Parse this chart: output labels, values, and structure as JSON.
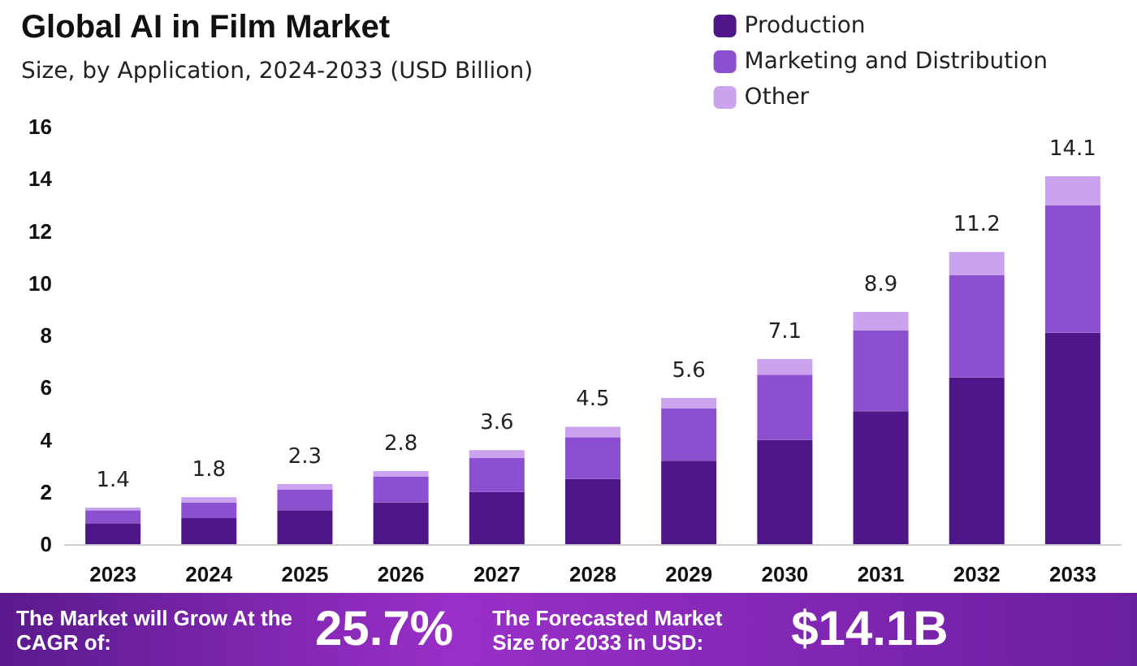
{
  "chart_data": {
    "type": "bar",
    "title": "Global AI in Film Market",
    "subtitle": "Size, by Application, 2024-2033 (USD Billion)",
    "categories": [
      "2023",
      "2024",
      "2025",
      "2026",
      "2027",
      "2028",
      "2029",
      "2030",
      "2031",
      "2032",
      "2033"
    ],
    "series": [
      {
        "name": "Production",
        "color": "#4e1688",
        "values": [
          0.8,
          1.0,
          1.3,
          1.6,
          2.0,
          2.5,
          3.2,
          4.0,
          5.1,
          6.4,
          8.1
        ]
      },
      {
        "name": "Marketing and Distribution",
        "color": "#8b4fcf",
        "values": [
          0.5,
          0.6,
          0.8,
          1.0,
          1.3,
          1.6,
          2.0,
          2.5,
          3.1,
          3.9,
          4.9
        ]
      },
      {
        "name": "Other",
        "color": "#caa2ee",
        "values": [
          0.1,
          0.2,
          0.2,
          0.2,
          0.3,
          0.4,
          0.4,
          0.6,
          0.7,
          0.9,
          1.1
        ]
      }
    ],
    "stacked": true,
    "totals": [
      "1.4",
      "1.8",
      "2.3",
      "2.8",
      "3.6",
      "4.5",
      "5.6",
      "7.1",
      "8.9",
      "11.2",
      "14.1"
    ],
    "ylim": [
      0,
      16
    ],
    "yticks": [
      0,
      2,
      4,
      6,
      8,
      10,
      12,
      14,
      16
    ],
    "grid": false,
    "legend": "top right",
    "annotations": [
      "The Market will Grow At the CAGR of:",
      "25.7%",
      "The Forecasted Market Size for 2033 in USD:",
      "$14.1B"
    ]
  }
}
